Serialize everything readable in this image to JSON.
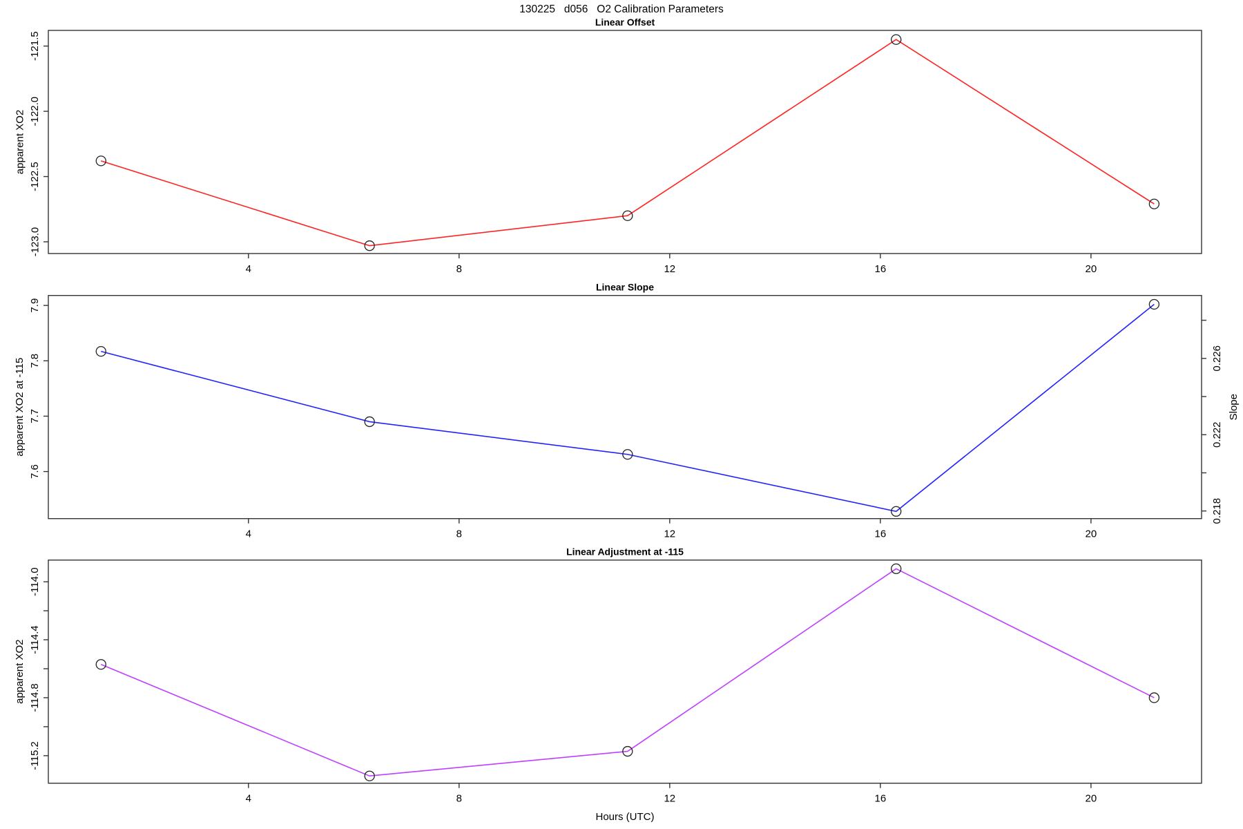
{
  "title": "130225   d056   O2 Calibration Parameters",
  "xlabel": "Hours (UTC)",
  "chart_data": [
    {
      "type": "line",
      "title": "Linear Offset",
      "ylabel": "apparent XO2",
      "color": "#ff2222",
      "marker": "open-circle",
      "grid": false,
      "x": [
        1.2,
        6.3,
        11.2,
        16.3,
        21.2
      ],
      "values": [
        -122.38,
        -123.03,
        -122.8,
        -121.45,
        -122.71
      ],
      "xlim": [
        0.2,
        22.1
      ],
      "ylim": [
        -123.09,
        -121.38
      ],
      "xticks": [
        {
          "v": 4,
          "label": "4"
        },
        {
          "v": 8,
          "label": "8"
        },
        {
          "v": 12,
          "label": "12"
        },
        {
          "v": 16,
          "label": "16"
        },
        {
          "v": 20,
          "label": "20"
        }
      ],
      "yticks": [
        {
          "v": -121.5,
          "label": "-121.5"
        },
        {
          "v": -122.0,
          "label": "-122.0"
        },
        {
          "v": -122.5,
          "label": "-122.5"
        },
        {
          "v": -123.0,
          "label": "-123.0"
        }
      ]
    },
    {
      "type": "line",
      "title": "Linear Slope",
      "ylabel": "apparent XO2 at -115",
      "color": "#2222ff",
      "marker": "open-circle",
      "grid": false,
      "x": [
        1.2,
        6.3,
        11.2,
        16.3,
        21.2
      ],
      "values": [
        7.817,
        7.69,
        7.631,
        7.528,
        7.902
      ],
      "xlim": [
        0.2,
        22.1
      ],
      "ylim": [
        7.515,
        7.918
      ],
      "xticks": [
        {
          "v": 4,
          "label": "4"
        },
        {
          "v": 8,
          "label": "8"
        },
        {
          "v": 12,
          "label": "12"
        },
        {
          "v": 16,
          "label": "16"
        },
        {
          "v": 20,
          "label": "20"
        }
      ],
      "yticks": [
        {
          "v": 7.9,
          "label": "7.9"
        },
        {
          "v": 7.8,
          "label": "7.8"
        },
        {
          "v": 7.7,
          "label": "7.7"
        },
        {
          "v": 7.6,
          "label": "7.6"
        }
      ],
      "right_axis": {
        "label": "Slope",
        "ylim": [
          0.2176,
          0.2293
        ],
        "ticks": [
          {
            "v": 0.218,
            "label": "0.218"
          },
          {
            "v": 0.22,
            "label": ""
          },
          {
            "v": 0.222,
            "label": "0.222"
          },
          {
            "v": 0.224,
            "label": ""
          },
          {
            "v": 0.226,
            "label": "0.226"
          },
          {
            "v": 0.228,
            "label": ""
          }
        ]
      }
    },
    {
      "type": "line",
      "title": "Linear Adjustment at -115",
      "ylabel": "apparent XO2",
      "xlabel": "Hours (UTC)",
      "color": "#bf3eff",
      "marker": "open-circle",
      "grid": false,
      "x": [
        1.2,
        6.3,
        11.2,
        16.3,
        21.2
      ],
      "values": [
        -114.57,
        -115.34,
        -115.17,
        -113.91,
        -114.8
      ],
      "xlim": [
        0.2,
        22.1
      ],
      "ylim": [
        -115.39,
        -113.85
      ],
      "xticks": [
        {
          "v": 4,
          "label": "4"
        },
        {
          "v": 8,
          "label": "8"
        },
        {
          "v": 12,
          "label": "12"
        },
        {
          "v": 16,
          "label": "16"
        },
        {
          "v": 20,
          "label": "20"
        }
      ],
      "yticks": [
        {
          "v": -114.0,
          "label": "-114.0"
        },
        {
          "v": -114.2,
          "label": ""
        },
        {
          "v": -114.4,
          "label": "-114.4"
        },
        {
          "v": -114.6,
          "label": ""
        },
        {
          "v": -114.8,
          "label": "-114.8"
        },
        {
          "v": -115.0,
          "label": ""
        },
        {
          "v": -115.2,
          "label": "-115.2"
        }
      ]
    }
  ]
}
